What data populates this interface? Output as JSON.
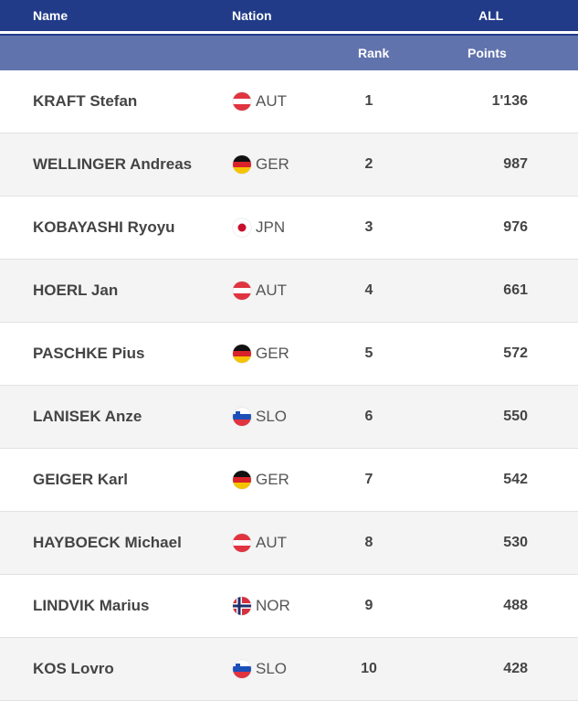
{
  "header": {
    "name": "Name",
    "nation": "Nation",
    "all": "ALL",
    "rank": "Rank",
    "points": "Points"
  },
  "rows": [
    {
      "name": "KRAFT Stefan",
      "nation": "AUT",
      "rank": "1",
      "points": "1'136"
    },
    {
      "name": "WELLINGER Andreas",
      "nation": "GER",
      "rank": "2",
      "points": "987"
    },
    {
      "name": "KOBAYASHI Ryoyu",
      "nation": "JPN",
      "rank": "3",
      "points": "976"
    },
    {
      "name": "HOERL Jan",
      "nation": "AUT",
      "rank": "4",
      "points": "661"
    },
    {
      "name": "PASCHKE Pius",
      "nation": "GER",
      "rank": "5",
      "points": "572"
    },
    {
      "name": "LANISEK Anze",
      "nation": "SLO",
      "rank": "6",
      "points": "550"
    },
    {
      "name": "GEIGER Karl",
      "nation": "GER",
      "rank": "7",
      "points": "542"
    },
    {
      "name": "HAYBOECK Michael",
      "nation": "AUT",
      "rank": "8",
      "points": "530"
    },
    {
      "name": "LINDVIK Marius",
      "nation": "NOR",
      "rank": "9",
      "points": "488"
    },
    {
      "name": "KOS Lovro",
      "nation": "SLO",
      "rank": "10",
      "points": "428"
    }
  ]
}
